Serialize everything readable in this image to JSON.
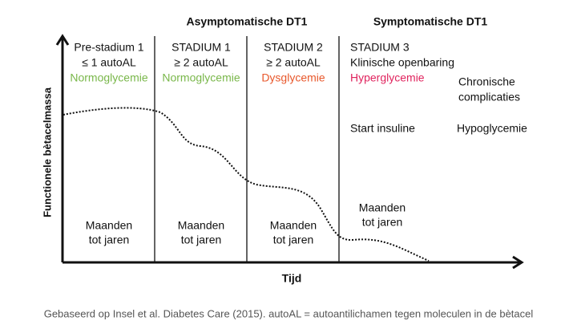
{
  "headers": [
    "Asymptomatische DT1",
    "Symptomatische DT1"
  ],
  "stages": [
    {
      "lines": [
        "Pre-stadium 1",
        "≤ 1 autoAL",
        "Normoglycemie"
      ],
      "duration": [
        "Maanden",
        "tot jaren"
      ]
    },
    {
      "lines": [
        "STADIUM 1",
        "≥ 2 autoAL",
        "Normoglycemie"
      ],
      "duration": [
        "Maanden",
        "tot jaren"
      ]
    },
    {
      "lines": [
        "STADIUM 2",
        "≥ 2 autoAL",
        "Dysglycemie"
      ],
      "duration": [
        "Maanden",
        "tot jaren"
      ]
    },
    {
      "lines": [
        "STADIUM 3",
        "Klinische openbaring",
        "Hyperglycemie"
      ],
      "duration": [
        "Maanden",
        "tot jaren"
      ]
    }
  ],
  "complications": [
    "Chronische",
    "complicaties"
  ],
  "treatment": "Start insuline",
  "risk": "Hypoglycemie",
  "y_label": "Functionele bètacelmassa",
  "x_label": "Tijd",
  "caption": "Gebaseerd op Insel et al. Diabetes Care (2015). autoAL = autoantilichamen tegen moleculen in de bètacel"
}
